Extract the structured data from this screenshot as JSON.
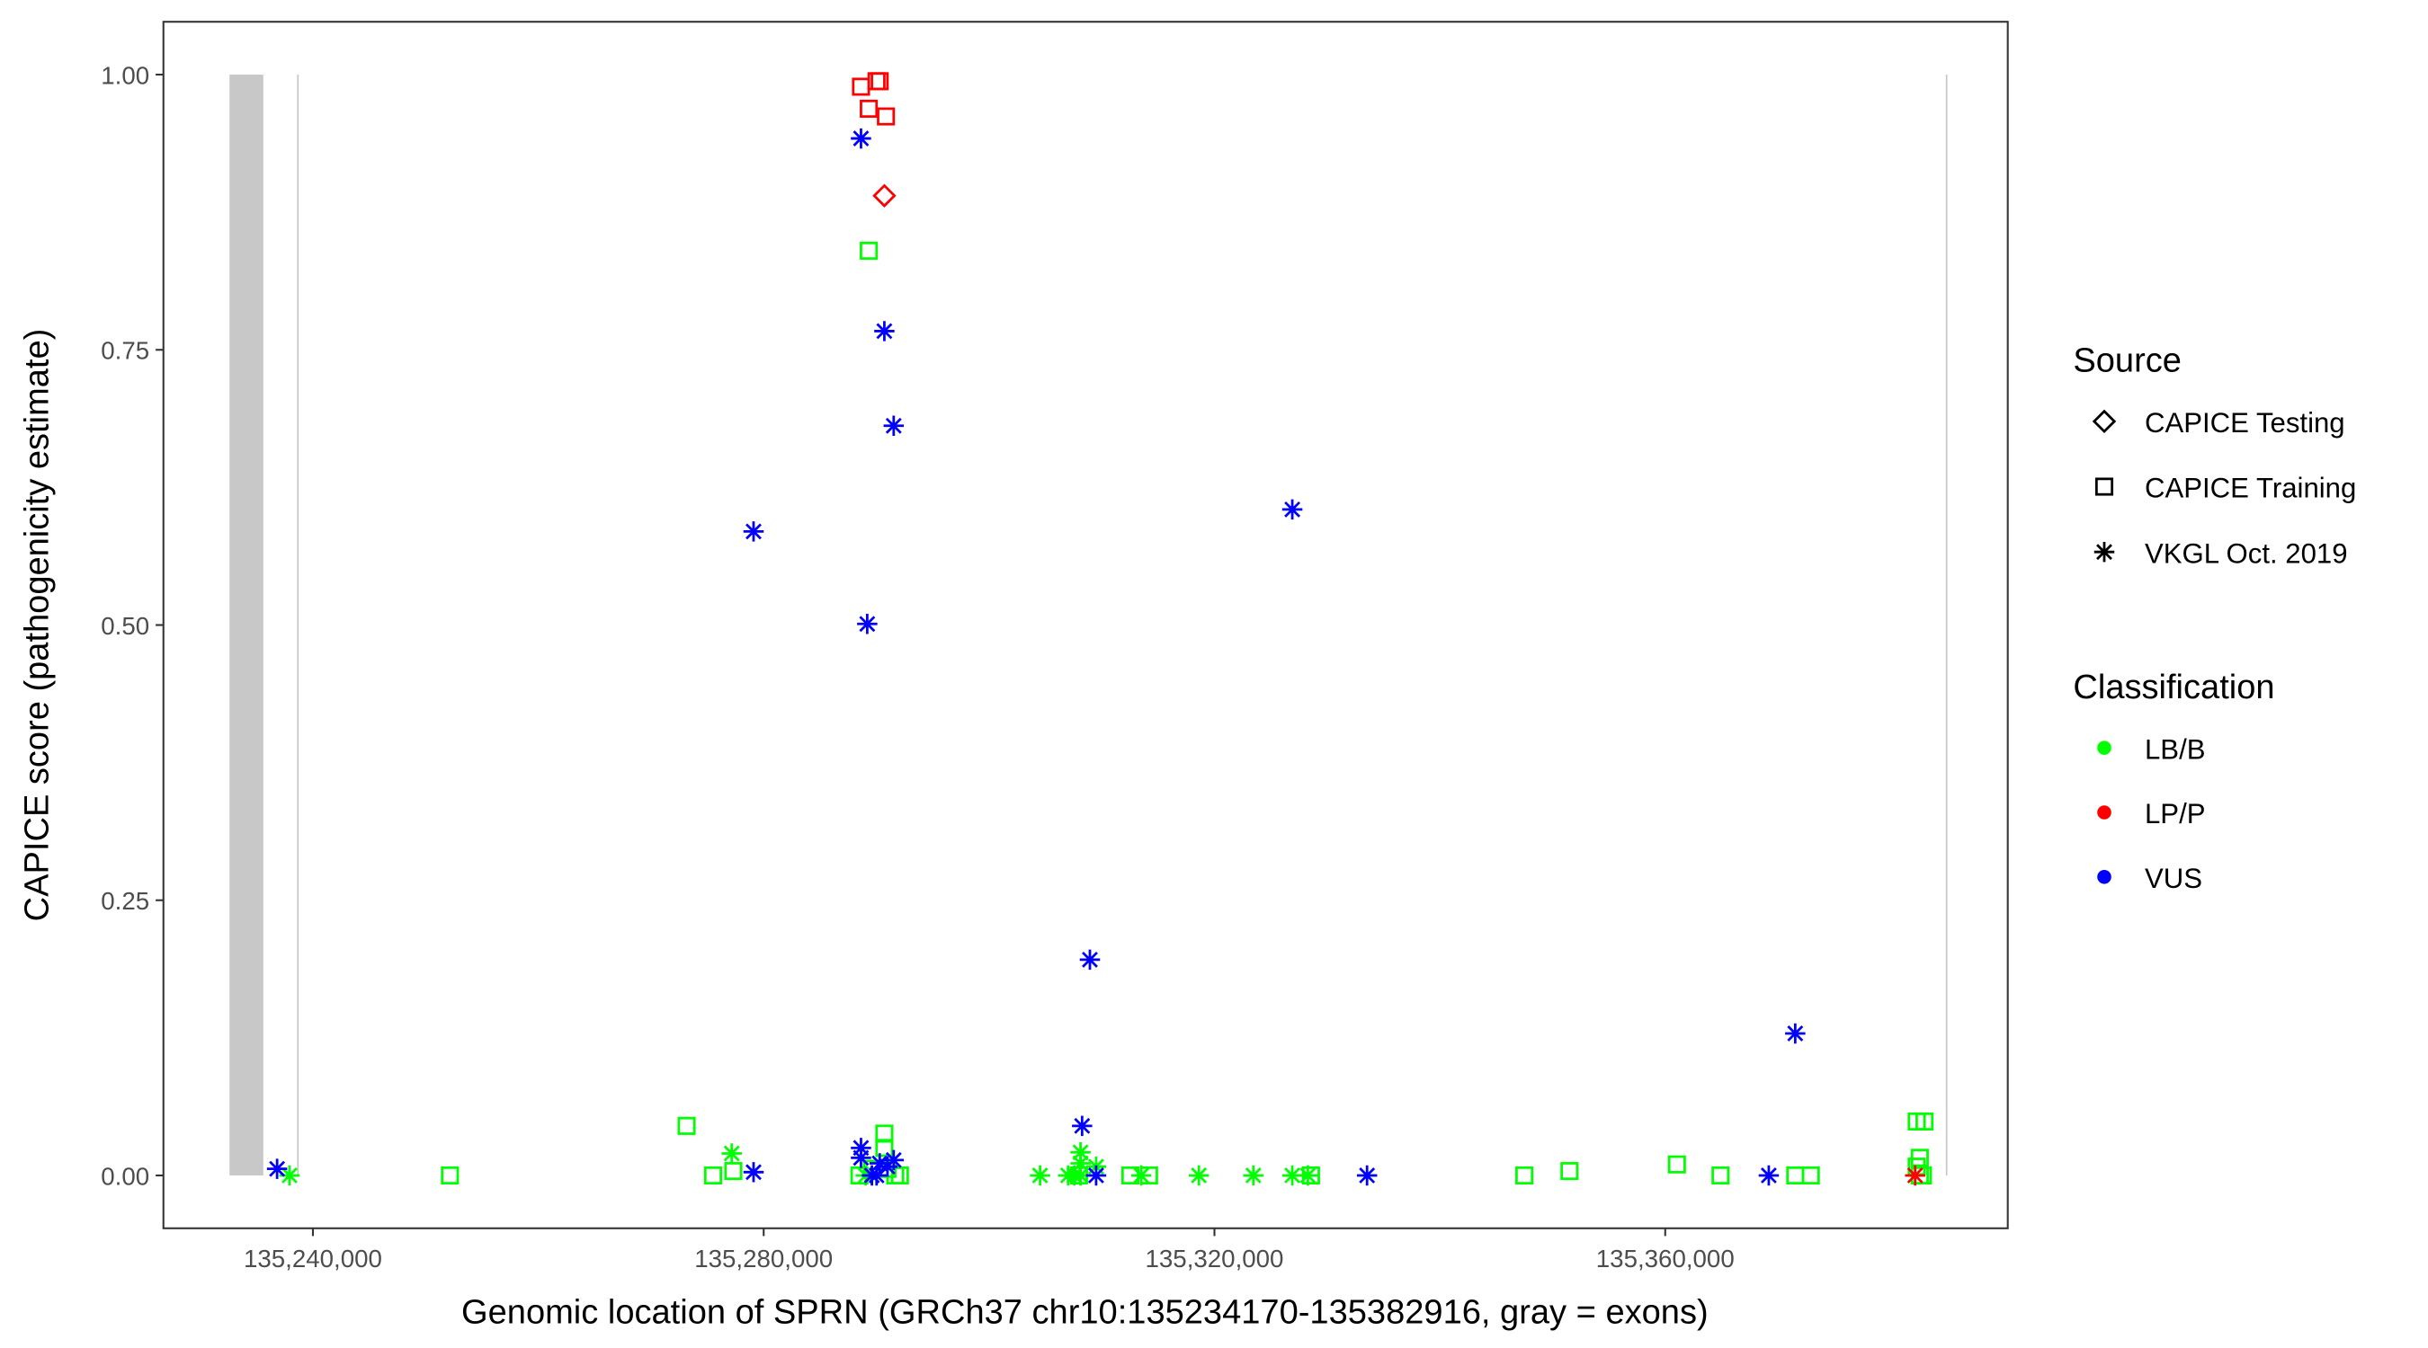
{
  "chart_data": {
    "type": "scatter",
    "xlabel": "Genomic location of SPRN (GRCh37 chr10:135234170-135382916, gray = exons)",
    "ylabel": "CAPICE score (pathogenicity estimate)",
    "xlim": [
      135226735,
      135390397
    ],
    "ylim": [
      -0.048,
      1.048
    ],
    "x_ticks": [
      135240000,
      135280000,
      135320000,
      135360000
    ],
    "x_tick_labels": [
      "135,240,000",
      "135,280,000",
      "135,320,000",
      "135,360,000"
    ],
    "y_ticks": [
      0,
      0.25,
      0.5,
      0.75,
      1.0
    ],
    "y_tick_labels": [
      "0.00",
      "0.25",
      "0.50",
      "0.75",
      "1.00"
    ],
    "grid": false,
    "exons": [
      {
        "start": 135232600,
        "end": 135235600
      },
      {
        "start": 135238600,
        "end": 135238700
      },
      {
        "start": 135384900,
        "end": 135385000
      }
    ],
    "exon_color": "#c8c8c8",
    "legend": {
      "placement": "right",
      "source_title": "Source",
      "source_items": [
        {
          "key": "testing",
          "label": "CAPICE Testing",
          "shape": "diamond"
        },
        {
          "key": "training",
          "label": "CAPICE Training",
          "shape": "square"
        },
        {
          "key": "vkgl",
          "label": "VKGL Oct. 2019",
          "shape": "asterisk"
        }
      ],
      "class_title": "Classification",
      "class_items": [
        {
          "key": "LB/B",
          "label": "LB/B",
          "color": "#00ff00"
        },
        {
          "key": "LP/P",
          "label": "LP/P",
          "color": "#ff0000"
        },
        {
          "key": "VUS",
          "label": "VUS",
          "color": "#0000ff"
        }
      ]
    },
    "points": [
      [
        135252159,
        0.0,
        "training",
        "LB/B"
      ],
      [
        135273161,
        0.045,
        "training",
        "LB/B"
      ],
      [
        135275510,
        0.0,
        "training",
        "LB/B"
      ],
      [
        135277306,
        0.004,
        "training",
        "LB/B"
      ],
      [
        135289327,
        0.84,
        "training",
        "LB/B"
      ],
      [
        135290708,
        0.038,
        "training",
        "LB/B"
      ],
      [
        135290708,
        0.025,
        "training",
        "LB/B"
      ],
      [
        135288498,
        0.0,
        "training",
        "LB/B"
      ],
      [
        135289603,
        0.006,
        "training",
        "LB/B"
      ],
      [
        135290985,
        0.006,
        "training",
        "LB/B"
      ],
      [
        135291676,
        0.0,
        "training",
        "LB/B"
      ],
      [
        135292090,
        0.0,
        "training",
        "LB/B"
      ],
      [
        135307980,
        0.0,
        "training",
        "LB/B"
      ],
      [
        135312539,
        0.0,
        "training",
        "LB/B"
      ],
      [
        135314197,
        0.0,
        "training",
        "LB/B"
      ],
      [
        135328567,
        0.0,
        "training",
        "LB/B"
      ],
      [
        135347496,
        0.0,
        "training",
        "LB/B"
      ],
      [
        135351503,
        0.004,
        "training",
        "LB/B"
      ],
      [
        135361037,
        0.01,
        "training",
        "LB/B"
      ],
      [
        135364906,
        0.0,
        "training",
        "LB/B"
      ],
      [
        135371538,
        0.0,
        "training",
        "LB/B"
      ],
      [
        135372920,
        0.0,
        "training",
        "LB/B"
      ],
      [
        135382315,
        0.049,
        "training",
        "LB/B"
      ],
      [
        135383006,
        0.049,
        "training",
        "LB/B"
      ],
      [
        135382591,
        0.016,
        "training",
        "LB/B"
      ],
      [
        135382315,
        0.008,
        "training",
        "LB/B"
      ],
      [
        135382868,
        0.0,
        "training",
        "LB/B"
      ],
      [
        135382591,
        0.0,
        "training",
        "LB/B"
      ],
      [
        135237927,
        0.0,
        "vkgl",
        "LB/B"
      ],
      [
        135277168,
        0.02,
        "vkgl",
        "LB/B"
      ],
      [
        135289050,
        0.0,
        "vkgl",
        "LB/B"
      ],
      [
        135304525,
        0.0,
        "vkgl",
        "LB/B"
      ],
      [
        135307012,
        0.0,
        "vkgl",
        "LB/B"
      ],
      [
        135308118,
        0.021,
        "vkgl",
        "LB/B"
      ],
      [
        135308118,
        0.011,
        "vkgl",
        "LB/B"
      ],
      [
        135309500,
        0.008,
        "vkgl",
        "LB/B"
      ],
      [
        135307565,
        0.0,
        "vkgl",
        "LB/B"
      ],
      [
        135308118,
        0.0,
        "vkgl",
        "LB/B"
      ],
      [
        135313506,
        0.0,
        "vkgl",
        "LB/B"
      ],
      [
        135318619,
        0.0,
        "vkgl",
        "LB/B"
      ],
      [
        135323455,
        0.0,
        "vkgl",
        "LB/B"
      ],
      [
        135326909,
        0.0,
        "vkgl",
        "LB/B"
      ],
      [
        135328291,
        0.0,
        "vkgl",
        "LB/B"
      ],
      [
        135288636,
        0.989,
        "training",
        "LP/P"
      ],
      [
        135289327,
        0.969,
        "training",
        "LP/P"
      ],
      [
        135290018,
        0.994,
        "training",
        "LP/P"
      ],
      [
        135290294,
        0.994,
        "training",
        "LP/P"
      ],
      [
        135290847,
        0.962,
        "training",
        "LP/P"
      ],
      [
        135290708,
        0.89,
        "testing",
        "LP/P"
      ],
      [
        135382177,
        0.0,
        "vkgl",
        "LP/P"
      ],
      [
        135236822,
        0.006,
        "vkgl",
        "VUS"
      ],
      [
        135279102,
        0.585,
        "vkgl",
        "VUS"
      ],
      [
        135279102,
        0.003,
        "vkgl",
        "VUS"
      ],
      [
        135288636,
        0.942,
        "vkgl",
        "VUS"
      ],
      [
        135289189,
        0.501,
        "vkgl",
        "VUS"
      ],
      [
        135290708,
        0.767,
        "vkgl",
        "VUS"
      ],
      [
        135291537,
        0.681,
        "vkgl",
        "VUS"
      ],
      [
        135326909,
        0.605,
        "vkgl",
        "VUS"
      ],
      [
        135308947,
        0.196,
        "vkgl",
        "VUS"
      ],
      [
        135308256,
        0.045,
        "vkgl",
        "VUS"
      ],
      [
        135309500,
        0.0,
        "vkgl",
        "VUS"
      ],
      [
        135333541,
        0.0,
        "vkgl",
        "VUS"
      ],
      [
        135371538,
        0.129,
        "vkgl",
        "VUS"
      ],
      [
        135369189,
        0.0,
        "vkgl",
        "VUS"
      ],
      [
        135288636,
        0.025,
        "vkgl",
        "VUS"
      ],
      [
        135288636,
        0.016,
        "vkgl",
        "VUS"
      ],
      [
        135289603,
        0.0,
        "vkgl",
        "VUS"
      ],
      [
        135290294,
        0.011,
        "vkgl",
        "VUS"
      ],
      [
        135290985,
        0.008,
        "vkgl",
        "VUS"
      ],
      [
        135291537,
        0.014,
        "vkgl",
        "VUS"
      ],
      [
        135290018,
        0.0,
        "vkgl",
        "VUS"
      ]
    ]
  }
}
